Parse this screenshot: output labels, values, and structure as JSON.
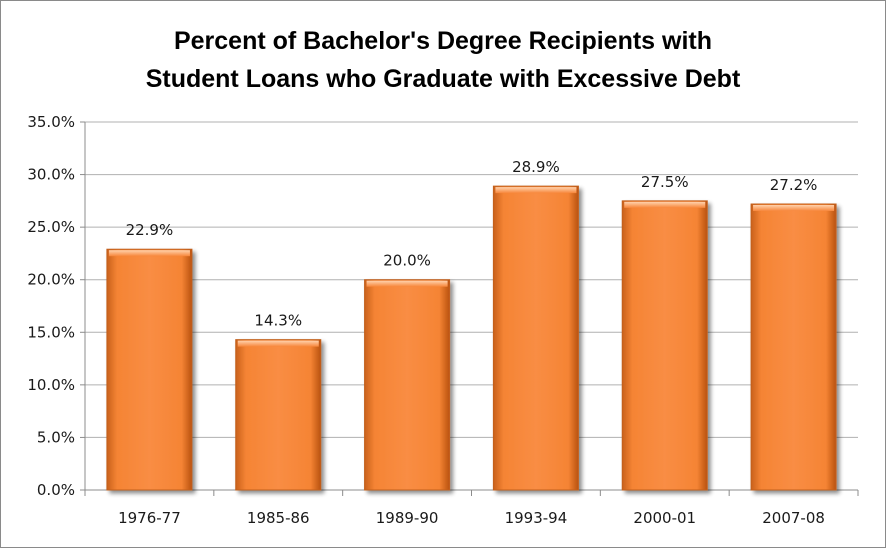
{
  "chart_data": {
    "type": "bar",
    "title_lines": [
      "Percent of Bachelor's Degree Recipients with",
      "Student Loans who Graduate with Excessive Debt"
    ],
    "categories": [
      "1976-77",
      "1985-86",
      "1989-90",
      "1993-94",
      "2000-01",
      "2007-08"
    ],
    "values": [
      22.9,
      14.3,
      20.0,
      28.9,
      27.5,
      27.2
    ],
    "data_labels": [
      "22.9%",
      "14.3%",
      "20.0%",
      "28.9%",
      "27.5%",
      "27.2%"
    ],
    "y_ticks": [
      0,
      5,
      10,
      15,
      20,
      25,
      30,
      35
    ],
    "y_tick_labels": [
      "0.0%",
      "5.0%",
      "10.0%",
      "15.0%",
      "20.0%",
      "25.0%",
      "30.0%",
      "35.0%"
    ],
    "ylim": [
      0,
      35
    ],
    "grid": true,
    "legend": "none",
    "colors": {
      "bar": "#f7863a",
      "bar_light": "#ffc190",
      "bar_dark": "#c45a16",
      "gridline": "#b0b0b0"
    }
  }
}
